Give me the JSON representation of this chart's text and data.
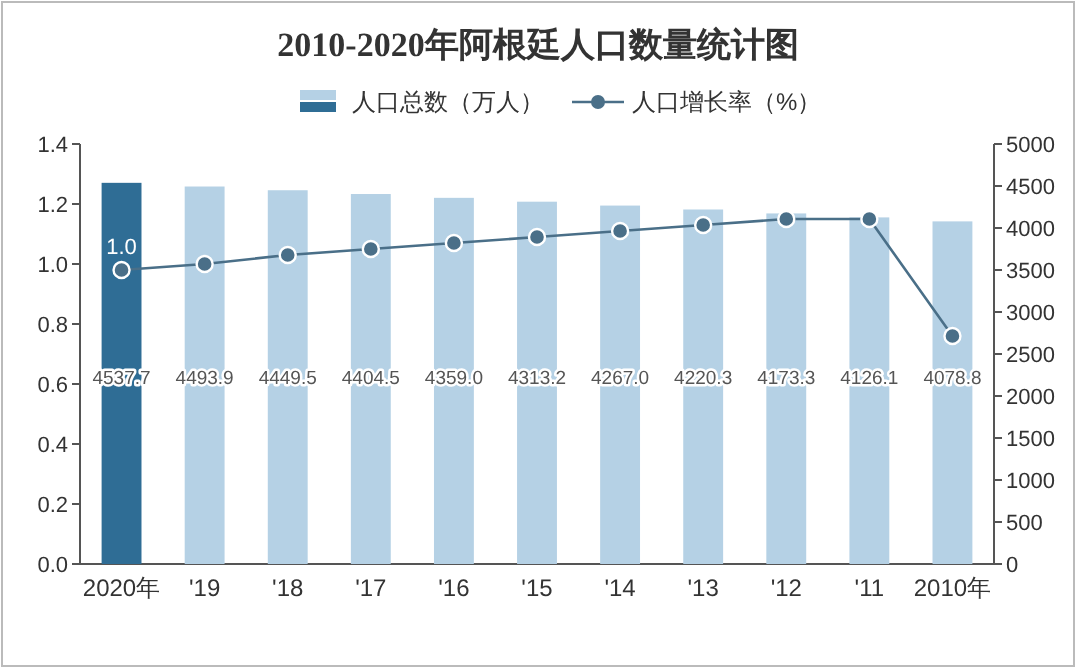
{
  "chart_data": {
    "type": "bar",
    "title": "2010-2020年阿根廷人口数量统计图",
    "legend": "top",
    "categories": [
      "2020年",
      "'19",
      "'18",
      "'17",
      "'16",
      "'15",
      "'14",
      "'13",
      "'12",
      "'11",
      "2010年"
    ],
    "series": [
      {
        "name": "人口总数（万人）",
        "axis": "y2",
        "colors": [
          "#2f6d95",
          "#b5d1e5",
          "#b5d1e5",
          "#b5d1e5",
          "#b5d1e5",
          "#b5d1e5",
          "#b5d1e5",
          "#b5d1e5",
          "#b5d1e5",
          "#b5d1e5",
          "#b5d1e5"
        ],
        "color": "#b5d1e5",
        "data_labels": true,
        "values": [
          4537.7,
          4493.9,
          4449.5,
          4404.5,
          4359.0,
          4313.2,
          4267.0,
          4220.3,
          4173.3,
          4126.1,
          4078.8
        ],
        "value_labels": [
          "4537.7",
          "4493.9",
          "4449.5",
          "4404.5",
          "4359.0",
          "4313.2",
          "4267.0",
          "4220.3",
          "4173.3",
          "4126.1",
          "4078.8"
        ]
      },
      {
        "name": "人口增长率（%）",
        "type": "line",
        "axis": "y",
        "color": "#4a6f88",
        "marker": "circle",
        "values": [
          0.98,
          1.0,
          1.03,
          1.05,
          1.07,
          1.09,
          1.11,
          1.13,
          1.15,
          1.15,
          0.76
        ],
        "value_labels": [
          "1.0",
          null,
          null,
          null,
          null,
          null,
          null,
          null,
          null,
          null,
          null
        ]
      }
    ],
    "ylim": [
      0,
      1.4
    ],
    "yticks": [
      {
        "value": 0,
        "label": "0.0"
      },
      0.2,
      0.4,
      0.6,
      0.8,
      {
        "value": 1,
        "label": "1.0"
      },
      1.2,
      1.4
    ],
    "y2lim": [
      0,
      5000
    ],
    "y2ticks": [
      0,
      500,
      1000,
      1500,
      2000,
      2500,
      3000,
      3500,
      4000,
      4500,
      5000
    ]
  }
}
